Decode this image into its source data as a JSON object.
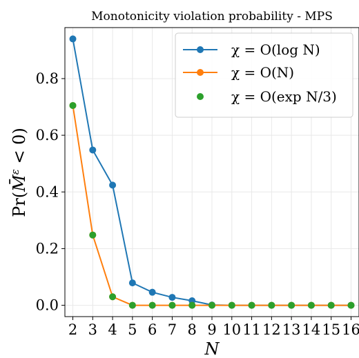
{
  "chart_data": {
    "type": "line",
    "title": "Monotonicity violation probability - MPS",
    "xlabel": "N",
    "ylabel": "Pr(M̄^ε < 0)",
    "x": [
      2,
      3,
      4,
      5,
      6,
      7,
      8,
      9,
      10,
      11,
      12,
      13,
      14,
      15,
      16
    ],
    "xticks": [
      "2",
      "3",
      "4",
      "5",
      "6",
      "7",
      "8",
      "9",
      "10",
      "11",
      "12",
      "13",
      "14",
      "15",
      "16"
    ],
    "ylim": [
      -0.04,
      0.98
    ],
    "yticks": [
      "0.0",
      "0.2",
      "0.4",
      "0.6",
      "0.8"
    ],
    "grid": true,
    "legend_position": "top-right",
    "series": [
      {
        "name": "χ = O(log N)",
        "color": "#1f77b4",
        "style": "line-marker",
        "values": [
          0.94,
          0.548,
          0.424,
          0.079,
          0.046,
          0.028,
          0.016,
          0.001,
          0.0,
          0.0,
          0.0,
          0.0,
          0.0,
          0.0,
          0.0
        ]
      },
      {
        "name": "χ = O(N)",
        "color": "#ff7f0e",
        "style": "line-marker",
        "values": [
          0.705,
          0.248,
          0.03,
          0.0,
          0.0,
          0.0,
          0.0,
          0.0,
          0.0,
          0.0,
          0.0,
          0.0,
          0.0,
          0.0,
          0.0
        ]
      },
      {
        "name": "χ = O(exp N/3)",
        "color": "#2ca02c",
        "style": "marker",
        "values": [
          0.705,
          0.248,
          0.03,
          0.0,
          0.0,
          0.0,
          0.0,
          0.0,
          0.0,
          0.0,
          0.0,
          0.0,
          0.0,
          0.0,
          0.0
        ]
      }
    ]
  }
}
